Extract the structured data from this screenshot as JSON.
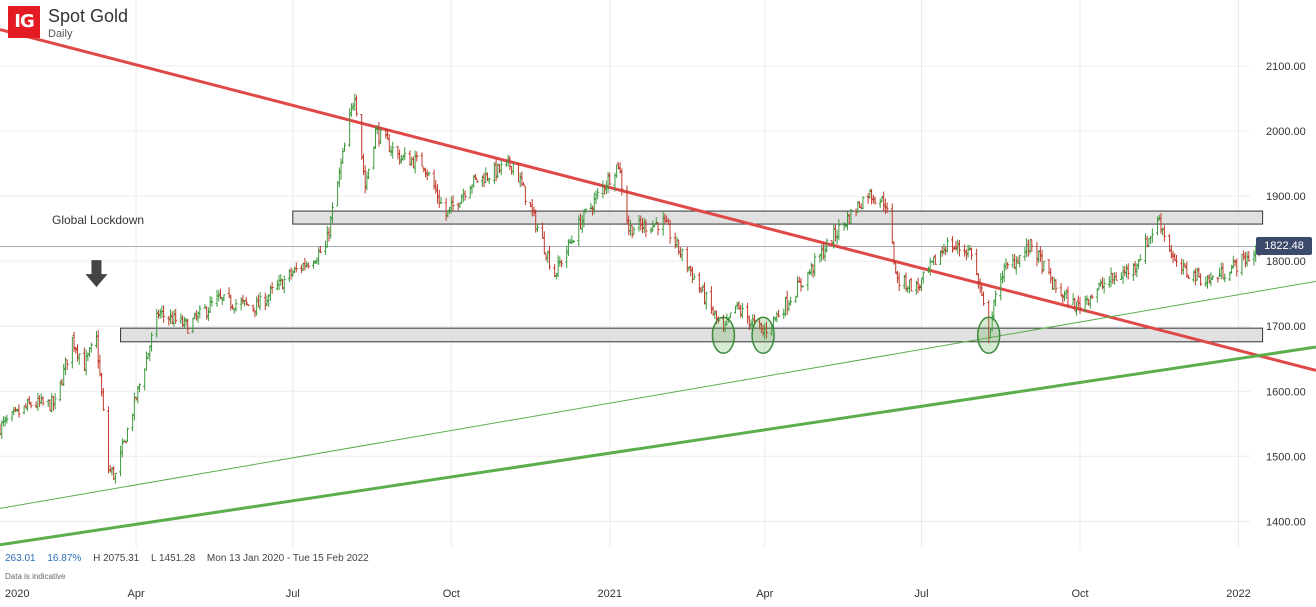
{
  "header": {
    "logo": "IG",
    "title": "Spot Gold",
    "subtitle": "Daily"
  },
  "annotation": {
    "label": "Global Lockdown",
    "arrow_icon": "down-arrow-icon",
    "support_marker_icon": "ellipse-highlight-icon"
  },
  "stats": {
    "change": "263.01",
    "change_pct": "16.87%",
    "high": "H 2075.31",
    "low": "L 1451.28",
    "range": "Mon 13 Jan 2020 - Tue 15 Feb 2022",
    "disclaimer": "Data is indicative"
  },
  "price_tag": "1822.48",
  "colors": {
    "up": "#3d9a3d",
    "down": "#c0392b",
    "resistance_trendline": "#e04848",
    "support_trendline": "#5cae4d",
    "zone_fill": "#d9d9d9",
    "price_tag_bg": "#3b4a6b"
  },
  "chart_data": {
    "type": "candlestick",
    "title": "Spot Gold",
    "subtitle": "Daily",
    "x_range": [
      "2020-01-13",
      "2022-02-15"
    ],
    "ylim": [
      1330,
      2150
    ],
    "y_ticks": [
      "2100.00",
      "2000.00",
      "1900.00",
      "1800.00",
      "1700.00",
      "1600.00",
      "1500.00",
      "1400.00"
    ],
    "x_ticks": [
      {
        "label": "2020",
        "date": "2020-01-01"
      },
      {
        "label": "Apr",
        "date": "2020-04-01"
      },
      {
        "label": "Jul",
        "date": "2020-07-01"
      },
      {
        "label": "Oct",
        "date": "2020-10-01"
      },
      {
        "label": "2021",
        "date": "2021-01-01"
      },
      {
        "label": "Apr",
        "date": "2021-04-01"
      },
      {
        "label": "Jul",
        "date": "2021-07-01"
      },
      {
        "label": "Oct",
        "date": "2021-10-01"
      },
      {
        "label": "2022",
        "date": "2022-01-01"
      }
    ],
    "grid": true,
    "last_price": 1822.48,
    "price_path": [
      [
        "2020-01-13",
        1545
      ],
      [
        "2020-01-31",
        1580
      ],
      [
        "2020-02-14",
        1580
      ],
      [
        "2020-02-24",
        1680
      ],
      [
        "2020-03-02",
        1640
      ],
      [
        "2020-03-09",
        1680
      ],
      [
        "2020-03-16",
        1480
      ],
      [
        "2020-03-20",
        1470
      ],
      [
        "2020-04-01",
        1590
      ],
      [
        "2020-04-07",
        1650
      ],
      [
        "2020-04-14",
        1720
      ],
      [
        "2020-05-01",
        1700
      ],
      [
        "2020-05-18",
        1740
      ],
      [
        "2020-06-10",
        1730
      ],
      [
        "2020-06-30",
        1780
      ],
      [
        "2020-07-20",
        1820
      ],
      [
        "2020-07-31",
        1975
      ],
      [
        "2020-08-06",
        2060
      ],
      [
        "2020-08-12",
        1915
      ],
      [
        "2020-08-18",
        2000
      ],
      [
        "2020-09-01",
        1960
      ],
      [
        "2020-09-15",
        1950
      ],
      [
        "2020-09-28",
        1870
      ],
      [
        "2020-10-12",
        1920
      ],
      [
        "2020-11-06",
        1950
      ],
      [
        "2020-11-16",
        1880
      ],
      [
        "2020-11-30",
        1780
      ],
      [
        "2020-12-15",
        1860
      ],
      [
        "2021-01-06",
        1950
      ],
      [
        "2021-01-12",
        1850
      ],
      [
        "2021-02-01",
        1860
      ],
      [
        "2021-02-16",
        1790
      ],
      [
        "2021-03-08",
        1690
      ],
      [
        "2021-03-15",
        1730
      ],
      [
        "2021-03-31",
        1690
      ],
      [
        "2021-04-12",
        1730
      ],
      [
        "2021-04-26",
        1780
      ],
      [
        "2021-05-10",
        1835
      ],
      [
        "2021-05-31",
        1905
      ],
      [
        "2021-06-10",
        1890
      ],
      [
        "2021-06-17",
        1770
      ],
      [
        "2021-06-29",
        1760
      ],
      [
        "2021-07-15",
        1825
      ],
      [
        "2021-07-30",
        1815
      ],
      [
        "2021-08-09",
        1690
      ],
      [
        "2021-08-16",
        1780
      ],
      [
        "2021-09-03",
        1825
      ],
      [
        "2021-09-16",
        1760
      ],
      [
        "2021-09-29",
        1730
      ],
      [
        "2021-10-15",
        1765
      ],
      [
        "2021-11-01",
        1790
      ],
      [
        "2021-11-16",
        1865
      ],
      [
        "2021-11-26",
        1790
      ],
      [
        "2021-12-15",
        1770
      ],
      [
        "2022-01-03",
        1800
      ],
      [
        "2022-01-14",
        1820
      ]
    ],
    "trendlines": [
      {
        "name": "resistance",
        "from": [
          "2020-01-13",
          2156
        ],
        "to": [
          "2022-02-15",
          1632
        ],
        "style": "thick-red"
      },
      {
        "name": "support-primary",
        "from": [
          "2020-01-13",
          1364
        ],
        "to": [
          "2022-02-15",
          1668
        ],
        "style": "thick-green"
      },
      {
        "name": "support-secondary",
        "from": [
          "2020-01-13",
          1420
        ],
        "to": [
          "2022-02-15",
          1769
        ],
        "style": "thin-green"
      }
    ],
    "zones": [
      {
        "name": "upper-zone",
        "from": "2020-07-01",
        "to": "2022-01-15",
        "low": 1857,
        "high": 1877
      },
      {
        "name": "lower-zone",
        "from": "2020-03-23",
        "to": "2022-01-15",
        "low": 1676,
        "high": 1697
      }
    ],
    "markers": [
      {
        "type": "arrow-down",
        "date": "2020-03-09",
        "price": 1760
      },
      {
        "type": "ellipse",
        "date": "2021-03-08",
        "price": 1686
      },
      {
        "type": "ellipse",
        "date": "2021-03-31",
        "price": 1686
      },
      {
        "type": "ellipse",
        "date": "2021-08-09",
        "price": 1686
      }
    ]
  }
}
